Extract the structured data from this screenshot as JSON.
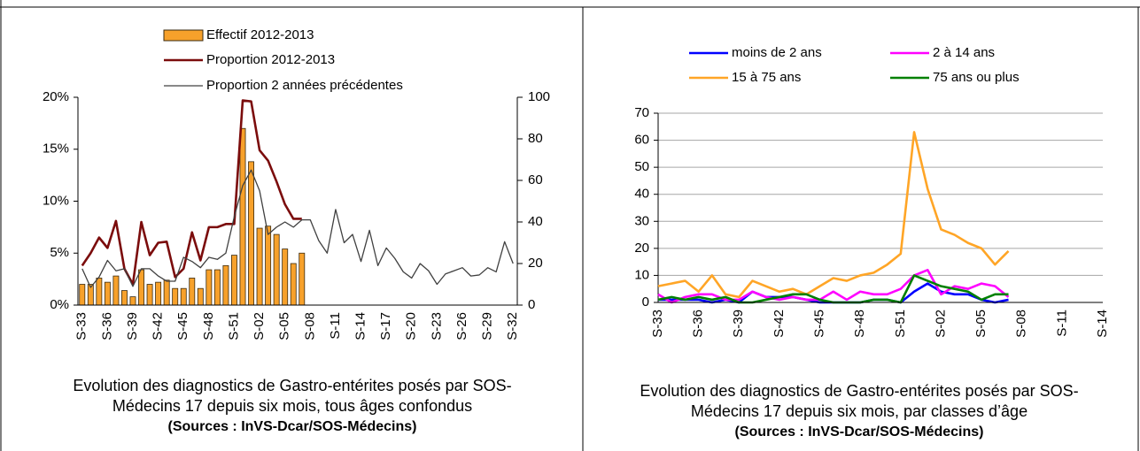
{
  "chart_data": [
    {
      "type": "combo",
      "categories": [
        "S-33",
        null,
        null,
        "S-36",
        null,
        null,
        "S-39",
        null,
        null,
        "S-42",
        null,
        null,
        "S-45",
        null,
        null,
        "S-48",
        null,
        null,
        "S-51",
        null,
        null,
        "S-02",
        null,
        null,
        "S-05",
        null,
        null,
        "S-08",
        null,
        null,
        "S-11",
        null,
        null,
        "S-14",
        null,
        null,
        "S-17",
        null,
        null,
        "S-20",
        null,
        null,
        "S-23",
        null,
        null,
        "S-26",
        null,
        null,
        "S-29",
        null,
        null,
        "S-32"
      ],
      "series": [
        {
          "name": "Effectif 2012-2013",
          "type": "bar",
          "axis": "y2",
          "color": "#f7a12b",
          "values": [
            10,
            10,
            13,
            11,
            14,
            7,
            4,
            17,
            10,
            11,
            12,
            8,
            8,
            13,
            8,
            17,
            17,
            19,
            24,
            85,
            69,
            37,
            38,
            34,
            27,
            20,
            25,
            null,
            null,
            null,
            null,
            null,
            null,
            null,
            null,
            null,
            null,
            null,
            null,
            null,
            null,
            null,
            null,
            null,
            null,
            null,
            null,
            null,
            null,
            null,
            null,
            null
          ]
        },
        {
          "name": "Proportion 2012-2013",
          "type": "line",
          "axis": "y",
          "color": "#7b0c0c",
          "values": [
            3.8,
            5.0,
            6.5,
            5.5,
            8.1,
            3.5,
            2.0,
            8.0,
            4.8,
            6.0,
            6.1,
            2.7,
            3.5,
            7.0,
            4.3,
            7.5,
            7.5,
            7.8,
            7.8,
            19.7,
            19.6,
            14.9,
            13.9,
            11.9,
            9.7,
            8.3,
            8.3,
            null,
            null,
            null,
            null,
            null,
            null,
            null,
            null,
            null,
            null,
            null,
            null,
            null,
            null,
            null,
            null,
            null,
            null,
            null,
            null,
            null,
            null,
            null,
            null,
            null
          ]
        },
        {
          "name": "Proportion 2 années précédentes",
          "type": "line",
          "axis": "y",
          "color": "#404040",
          "values": [
            3.5,
            1.7,
            2.7,
            4.3,
            3.3,
            3.5,
            1.8,
            3.5,
            3.5,
            2.8,
            2.3,
            2.3,
            4.6,
            4.2,
            3.6,
            4.6,
            4.4,
            5.0,
            8.5,
            11.5,
            13.0,
            11.0,
            6.8,
            7.5,
            8.0,
            7.5,
            8.2,
            8.2,
            6.2,
            5.0,
            9.2,
            6.0,
            6.8,
            4.2,
            7.2,
            3.8,
            5.5,
            4.5,
            3.2,
            2.6,
            4.0,
            3.3,
            2.0,
            3.0,
            3.3,
            3.6,
            2.8,
            2.9,
            3.6,
            3.2,
            6.1,
            4.0
          ]
        }
      ],
      "ylim": [
        0,
        20
      ],
      "yticks": [
        {
          "value": 0,
          "label": "0%"
        },
        {
          "value": 5,
          "label": "5%"
        },
        {
          "value": 10,
          "label": "10%"
        },
        {
          "value": 15,
          "label": "15%"
        },
        {
          "value": 20,
          "label": "20%"
        }
      ],
      "y2lim": [
        0,
        100
      ],
      "y2ticks": [
        0,
        20,
        40,
        60,
        80,
        100
      ],
      "grid": false,
      "caption": [
        "Evolution des diagnostics de Gastro-entérites posés par SOS-",
        "Médecins 17 depuis six mois, tous âges confondus"
      ],
      "source": "(Sources : InVS-Dcar/SOS-Médecins)"
    },
    {
      "type": "line",
      "categories": [
        "S-33",
        null,
        null,
        "S-36",
        null,
        null,
        "S-39",
        null,
        null,
        "S-42",
        null,
        null,
        "S-45",
        null,
        null,
        "S-48",
        null,
        null,
        "S-51",
        null,
        null,
        "S-02",
        null,
        null,
        "S-05",
        null,
        null,
        "S-08",
        null,
        null,
        "S-11",
        null,
        null,
        "S-14"
      ],
      "series": [
        {
          "name": "moins de 2 ans",
          "color": "#0000ff",
          "values": [
            1,
            1,
            1,
            1,
            0,
            1,
            0,
            4,
            2,
            2,
            2,
            1,
            0,
            0,
            0,
            0,
            1,
            1,
            0,
            4,
            7,
            4,
            3,
            3,
            1,
            0,
            1,
            null,
            null,
            null,
            null,
            null,
            null,
            null
          ]
        },
        {
          "name": "2 à 14 ans",
          "color": "#ff00ff",
          "values": [
            3,
            0,
            2,
            3,
            3,
            1,
            1,
            4,
            2,
            1,
            2,
            1,
            1,
            4,
            1,
            4,
            3,
            3,
            5,
            10,
            12,
            3,
            6,
            5,
            7,
            6,
            2,
            null,
            null,
            null,
            null,
            null,
            null,
            null
          ]
        },
        {
          "name": "15 à 75 ans",
          "color": "#ffa526",
          "values": [
            6,
            7,
            8,
            4,
            10,
            3,
            2,
            8,
            6,
            4,
            5,
            3,
            6,
            9,
            8,
            10,
            11,
            14,
            18,
            63,
            42,
            27,
            25,
            22,
            20,
            14,
            19,
            null,
            null,
            null,
            null,
            null,
            null,
            null
          ]
        },
        {
          "name": "75 ans ou plus",
          "color": "#008000",
          "values": [
            1,
            2,
            1,
            2,
            1,
            2,
            0,
            0,
            1,
            2,
            3,
            3,
            1,
            0,
            0,
            0,
            1,
            1,
            0,
            10,
            8,
            6,
            5,
            4,
            1,
            3,
            3,
            null,
            null,
            null,
            null,
            null,
            null,
            null
          ]
        }
      ],
      "ylim": [
        0,
        70
      ],
      "yticks": [
        0,
        10,
        20,
        30,
        40,
        50,
        60,
        70
      ],
      "grid": true,
      "caption": [
        "Evolution des diagnostics de Gastro-entérites posés par SOS-",
        "Médecins 17 depuis six mois, par classes d’âge"
      ],
      "source": "(Sources : InVS-Dcar/SOS-Médecins)"
    }
  ]
}
